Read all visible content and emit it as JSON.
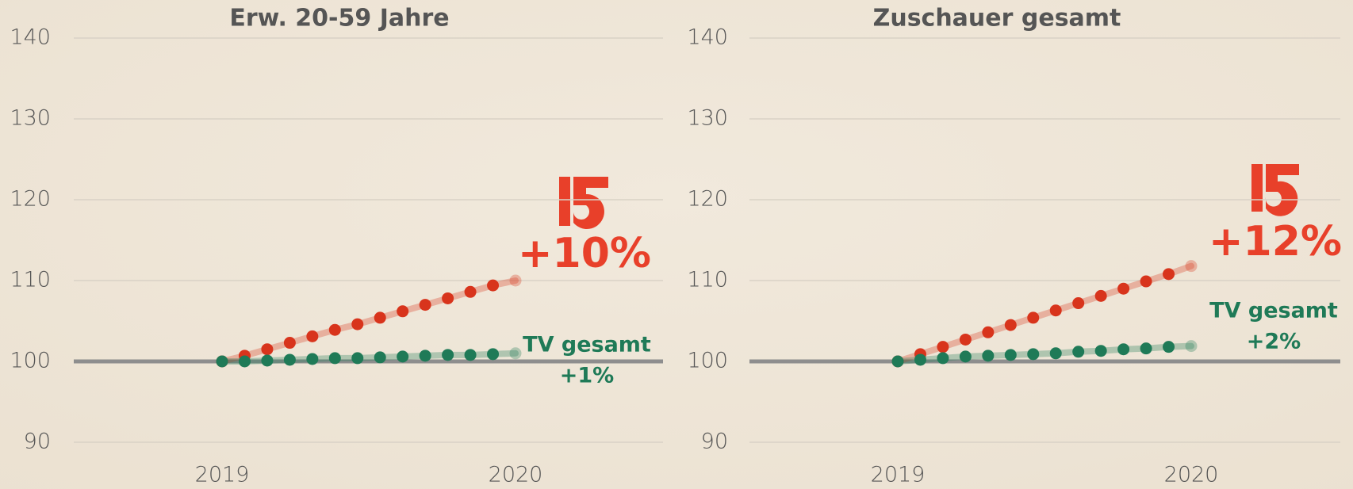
{
  "chart_data": [
    {
      "type": "line",
      "title": "Erw. 20-59 Jahre",
      "categories": [
        "2019",
        null,
        null,
        null,
        null,
        null,
        null,
        null,
        null,
        null,
        null,
        null,
        null,
        "2020"
      ],
      "series": [
        {
          "name": "Tele 5",
          "color": "#d8341c",
          "values": [
            100,
            100.7,
            101.5,
            102.3,
            103.1,
            103.9,
            104.6,
            105.4,
            106.2,
            107.0,
            107.8,
            108.6,
            109.4,
            110.0
          ]
        },
        {
          "name": "TV gesamt",
          "color": "#1f7a57",
          "values": [
            100,
            100,
            100.1,
            100.2,
            100.3,
            100.4,
            100.4,
            100.5,
            100.6,
            100.7,
            100.8,
            100.8,
            100.9,
            101.0
          ]
        }
      ],
      "ylim": [
        90,
        140
      ],
      "yticks": [
        90,
        100,
        110,
        120,
        130,
        140
      ],
      "grid": true,
      "reference_line": 100,
      "annotations": [
        "+10%",
        "TV gesamt",
        "+1%"
      ]
    },
    {
      "type": "line",
      "title": "Zuschauer gesamt",
      "categories": [
        "2019",
        null,
        null,
        null,
        null,
        null,
        null,
        null,
        null,
        null,
        null,
        null,
        null,
        "2020"
      ],
      "series": [
        {
          "name": "Tele 5",
          "color": "#d8341c",
          "values": [
            100,
            100.9,
            101.8,
            102.7,
            103.6,
            104.5,
            105.4,
            106.3,
            107.2,
            108.1,
            109.0,
            109.9,
            110.8,
            111.8
          ]
        },
        {
          "name": "TV gesamt",
          "color": "#1f7a57",
          "values": [
            100,
            100.2,
            100.4,
            100.6,
            100.7,
            100.8,
            100.9,
            101.0,
            101.2,
            101.3,
            101.5,
            101.6,
            101.8,
            101.9
          ]
        }
      ],
      "ylim": [
        90,
        140
      ],
      "yticks": [
        90,
        100,
        110,
        120,
        130,
        140
      ],
      "grid": true,
      "reference_line": 100,
      "annotations": [
        "+12%",
        "TV gesamt",
        "+2%"
      ]
    }
  ]
}
